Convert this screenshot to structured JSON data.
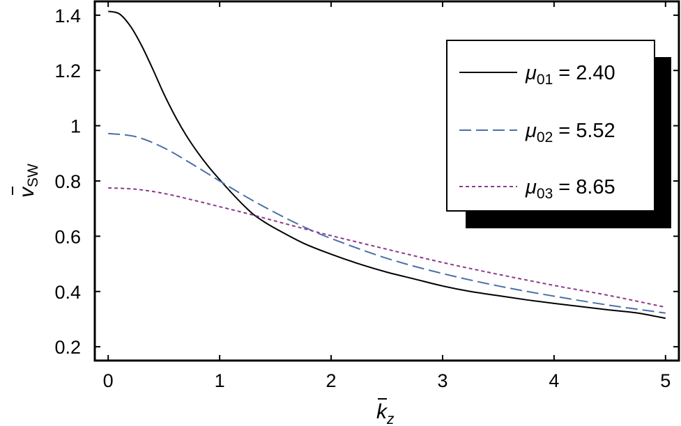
{
  "chart_data": {
    "type": "line",
    "xlabel": "k",
    "xlabel_sub": "z",
    "ylabel": "v",
    "ylabel_sub": "SW",
    "xlim": [
      -0.12,
      5.12
    ],
    "ylim": [
      0.15,
      1.45
    ],
    "xticks": [
      0,
      1,
      2,
      3,
      4,
      5
    ],
    "yticks": [
      0.2,
      0.4,
      0.6,
      0.8,
      1,
      1.2,
      1.4
    ],
    "xtick_labels": [
      "0",
      "1",
      "2",
      "3",
      "4",
      "5"
    ],
    "ytick_labels": [
      "0.2",
      "0.4",
      "0.6",
      "0.8",
      "1",
      "1.2",
      "1.4"
    ],
    "grid": false,
    "legend_position": "top-right",
    "series": [
      {
        "name": "μ01 = 2.40",
        "label_symbol": "μ",
        "label_sub": "01",
        "label_value": "= 2.40",
        "color": "#000000",
        "dash": "solid",
        "x": [
          0,
          0.1,
          0.2,
          0.3,
          0.4,
          0.5,
          0.6,
          0.7,
          0.8,
          0.9,
          1.0,
          1.1,
          1.2,
          1.3,
          1.4,
          1.5,
          1.75,
          2.0,
          2.25,
          2.5,
          2.75,
          3.0,
          3.25,
          3.5,
          3.75,
          4.0,
          4.25,
          4.5,
          4.75,
          5.0
        ],
        "y": [
          1.414,
          1.405,
          1.36,
          1.29,
          1.205,
          1.115,
          1.035,
          0.965,
          0.905,
          0.852,
          0.805,
          0.76,
          0.718,
          0.68,
          0.652,
          0.628,
          0.575,
          0.535,
          0.5,
          0.47,
          0.445,
          0.42,
          0.4,
          0.385,
          0.37,
          0.357,
          0.345,
          0.333,
          0.322,
          0.303
        ]
      },
      {
        "name": "μ02 = 5.52",
        "label_symbol": "μ",
        "label_sub": "02",
        "label_value": "= 5.52",
        "color": "#4a6fa8",
        "dash": "dashed",
        "x": [
          0,
          0.25,
          0.5,
          0.75,
          1.0,
          1.25,
          1.5,
          1.75,
          2.0,
          2.5,
          3.0,
          3.5,
          4.0,
          4.5,
          5.0
        ],
        "y": [
          0.972,
          0.96,
          0.92,
          0.862,
          0.8,
          0.74,
          0.685,
          0.635,
          0.592,
          0.52,
          0.465,
          0.42,
          0.383,
          0.35,
          0.322
        ]
      },
      {
        "name": "μ03 = 8.65",
        "label_symbol": "μ",
        "label_sub": "03",
        "label_value": "= 8.65",
        "color": "#8b3a8b",
        "dash": "dotted",
        "x": [
          0,
          0.25,
          0.5,
          0.75,
          1.0,
          1.25,
          1.5,
          1.75,
          2.0,
          2.5,
          3.0,
          3.5,
          4.0,
          4.5,
          5.0
        ],
        "y": [
          0.775,
          0.77,
          0.755,
          0.732,
          0.707,
          0.682,
          0.655,
          0.628,
          0.602,
          0.553,
          0.505,
          0.462,
          0.422,
          0.385,
          0.343
        ]
      }
    ]
  }
}
